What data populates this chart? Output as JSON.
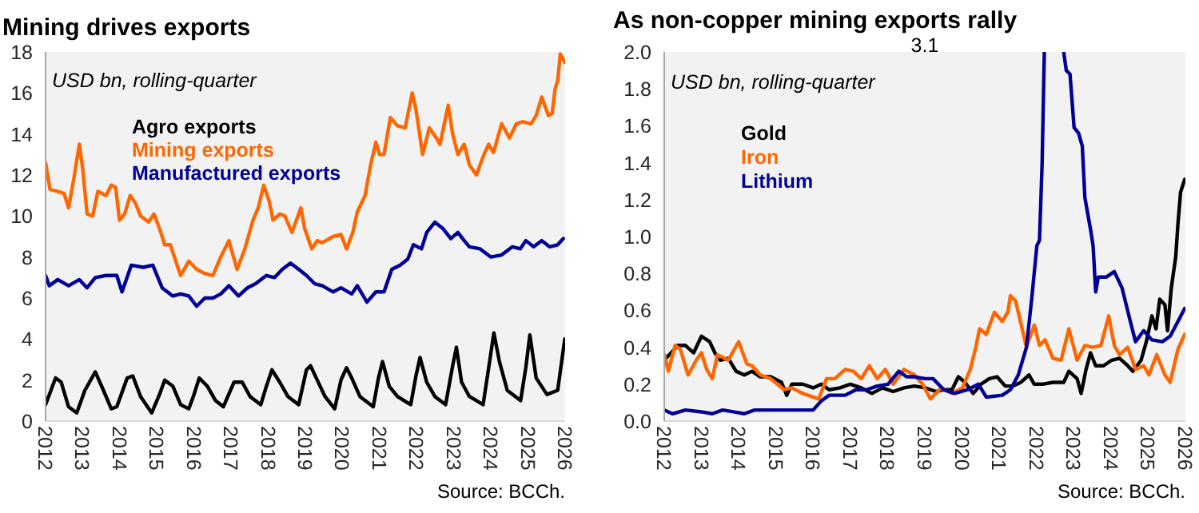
{
  "chart_data": [
    {
      "type": "line",
      "title": "Mining drives exports",
      "annotations": [
        "USD bn, rolling-quarter",
        "Source: BCCh."
      ],
      "legend": "top left",
      "xlim": [
        2012,
        2026
      ],
      "xticks": [
        2012,
        2013,
        2014,
        2015,
        2016,
        2017,
        2018,
        2019,
        2020,
        2021,
        2022,
        2023,
        2024,
        2025,
        2026
      ],
      "ylim": [
        0,
        18
      ],
      "yticks": [
        0,
        2,
        4,
        6,
        8,
        10,
        12,
        14,
        16,
        18
      ],
      "series": [
        {
          "name": "Agro exports",
          "color": "#000000",
          "x": [
            2012.0,
            2012.27,
            2012.42,
            2012.62,
            2012.84,
            2013.06,
            2013.34,
            2013.56,
            2013.77,
            2013.92,
            2014.2,
            2014.35,
            2014.56,
            2014.86,
            2015.07,
            2015.21,
            2015.43,
            2015.64,
            2015.86,
            2016.0,
            2016.14,
            2016.36,
            2016.58,
            2016.79,
            2017.08,
            2017.3,
            2017.51,
            2017.8,
            2017.95,
            2018.1,
            2018.31,
            2018.53,
            2018.82,
            2019.03,
            2019.14,
            2019.32,
            2019.53,
            2019.79,
            2019.96,
            2020.11,
            2020.25,
            2020.47,
            2020.83,
            2020.97,
            2021.08,
            2021.26,
            2021.48,
            2021.84,
            2021.98,
            2022.09,
            2022.27,
            2022.49,
            2022.78,
            2022.97,
            2023.07,
            2023.21,
            2023.42,
            2023.79,
            2023.94,
            2024.08,
            2024.23,
            2024.44,
            2024.8,
            2024.94,
            2025.05,
            2025.22,
            2025.51,
            2025.8,
            2025.99
          ],
          "values": [
            0.8,
            2.1,
            1.9,
            0.7,
            0.4,
            1.5,
            2.4,
            1.5,
            0.6,
            0.7,
            2.1,
            2.2,
            1.2,
            0.4,
            1.3,
            2.0,
            1.7,
            0.8,
            0.6,
            1.3,
            2.1,
            1.7,
            1.0,
            0.7,
            1.9,
            1.9,
            1.2,
            0.8,
            1.7,
            2.5,
            1.9,
            1.2,
            0.8,
            2.5,
            2.7,
            2.0,
            1.2,
            0.6,
            2.0,
            2.6,
            2.1,
            1.2,
            0.7,
            2.1,
            2.9,
            1.7,
            1.2,
            0.8,
            2.2,
            3.1,
            1.9,
            1.2,
            0.8,
            2.7,
            3.6,
            1.9,
            1.2,
            0.8,
            2.6,
            4.3,
            2.9,
            1.5,
            1.0,
            2.6,
            4.2,
            2.1,
            1.3,
            1.5,
            4.0
          ]
        },
        {
          "name": "Mining exports",
          "color": "#ff6600",
          "x": [
            2012.0,
            2012.12,
            2012.33,
            2012.5,
            2012.62,
            2012.76,
            2012.91,
            2013.0,
            2013.12,
            2013.27,
            2013.41,
            2013.63,
            2013.77,
            2013.89,
            2013.99,
            2014.13,
            2014.28,
            2014.43,
            2014.56,
            2014.78,
            2014.92,
            2015.07,
            2015.21,
            2015.36,
            2015.64,
            2015.86,
            2016.07,
            2016.29,
            2016.51,
            2016.72,
            2016.94,
            2017.16,
            2017.37,
            2017.59,
            2017.73,
            2017.88,
            2018.03,
            2018.13,
            2018.31,
            2018.45,
            2018.64,
            2018.88,
            2018.98,
            2019.17,
            2019.32,
            2019.46,
            2019.75,
            2019.96,
            2020.11,
            2020.28,
            2020.4,
            2020.61,
            2020.76,
            2020.9,
            2021.0,
            2021.12,
            2021.29,
            2021.48,
            2021.69,
            2021.88,
            2021.98,
            2022.16,
            2022.34,
            2022.53,
            2022.63,
            2022.85,
            2022.97,
            2023.11,
            2023.28,
            2023.42,
            2023.61,
            2023.79,
            2023.94,
            2024.07,
            2024.29,
            2024.5,
            2024.69,
            2024.86,
            2025.08,
            2025.22,
            2025.37,
            2025.55,
            2025.65,
            2025.73,
            2025.8,
            2025.87,
            2025.99
          ],
          "values": [
            12.6,
            11.3,
            11.2,
            11.1,
            10.4,
            11.8,
            13.5,
            12.3,
            10.1,
            10.0,
            11.2,
            11.0,
            11.5,
            11.4,
            9.8,
            10.1,
            11.0,
            10.6,
            10.0,
            9.7,
            10.1,
            9.4,
            8.6,
            8.6,
            7.1,
            7.8,
            7.4,
            7.2,
            7.1,
            8.0,
            8.8,
            7.4,
            8.4,
            9.8,
            10.4,
            11.5,
            10.7,
            9.8,
            10.1,
            10.0,
            9.2,
            10.4,
            9.4,
            8.4,
            8.8,
            8.7,
            9.0,
            9.1,
            8.4,
            9.2,
            10.2,
            11.0,
            12.5,
            13.6,
            13.0,
            13.0,
            14.8,
            14.4,
            14.3,
            16.0,
            15.2,
            13.0,
            14.3,
            13.8,
            13.5,
            15.4,
            14.0,
            13.0,
            13.5,
            12.5,
            12.0,
            12.9,
            13.5,
            13.1,
            14.5,
            13.8,
            14.5,
            14.6,
            14.5,
            14.9,
            15.8,
            14.9,
            15.0,
            16.2,
            16.6,
            17.9,
            17.5
          ]
        },
        {
          "name": "Manufactured exports",
          "color": "#000099",
          "x": [
            2012.0,
            2012.1,
            2012.33,
            2012.62,
            2012.91,
            2013.12,
            2013.34,
            2013.63,
            2013.92,
            2014.06,
            2014.31,
            2014.63,
            2014.89,
            2015.14,
            2015.43,
            2015.64,
            2015.86,
            2016.07,
            2016.29,
            2016.51,
            2016.72,
            2016.94,
            2017.2,
            2017.44,
            2017.66,
            2017.95,
            2018.17,
            2018.38,
            2018.6,
            2018.82,
            2019.03,
            2019.25,
            2019.46,
            2019.75,
            2019.96,
            2020.25,
            2020.4,
            2020.66,
            2020.9,
            2021.12,
            2021.33,
            2021.55,
            2021.76,
            2021.91,
            2022.13,
            2022.27,
            2022.49,
            2022.7,
            2022.92,
            2023.11,
            2023.28,
            2023.42,
            2023.71,
            2024.0,
            2024.29,
            2024.58,
            2024.79,
            2024.94,
            2025.15,
            2025.37,
            2025.58,
            2025.8,
            2025.95
          ],
          "values": [
            7.1,
            6.6,
            6.9,
            6.6,
            6.9,
            6.5,
            7.0,
            7.1,
            7.1,
            6.3,
            7.6,
            7.5,
            7.6,
            6.5,
            6.1,
            6.2,
            6.1,
            5.6,
            6.0,
            6.0,
            6.2,
            6.6,
            6.1,
            6.5,
            6.7,
            7.1,
            7.0,
            7.4,
            7.7,
            7.4,
            7.1,
            6.7,
            6.6,
            6.3,
            6.5,
            6.2,
            6.6,
            5.8,
            6.3,
            6.3,
            7.4,
            7.6,
            7.9,
            8.6,
            8.4,
            9.2,
            9.7,
            9.4,
            8.9,
            9.2,
            8.8,
            8.5,
            8.4,
            8.0,
            8.1,
            8.5,
            8.4,
            8.8,
            8.5,
            8.8,
            8.5,
            8.6,
            8.9
          ]
        }
      ]
    },
    {
      "type": "line",
      "title": "As non-copper mining exports rally",
      "annotations": [
        "USD bn, rolling-quarter",
        "Source: BCCh.",
        "3.1"
      ],
      "legend": "top left",
      "xlim": [
        2012,
        2026
      ],
      "xticks": [
        2012,
        2013,
        2014,
        2015,
        2016,
        2017,
        2018,
        2019,
        2020,
        2021,
        2022,
        2023,
        2024,
        2025,
        2026
      ],
      "ylim": [
        0,
        2
      ],
      "yticks": [
        {
          "value": 0,
          "label": "0.0"
        },
        0.2,
        0.4,
        0.6,
        0.8,
        {
          "value": 1,
          "label": "1.0"
        },
        1.2,
        1.4,
        1.6,
        1.8,
        {
          "value": 2,
          "label": "2.0"
        }
      ],
      "series": [
        {
          "name": "Gold",
          "color": "#000000",
          "x": [
            2012.0,
            2012.14,
            2012.36,
            2012.57,
            2012.79,
            2013.0,
            2013.22,
            2013.36,
            2013.5,
            2013.72,
            2013.93,
            2014.15,
            2014.36,
            2014.58,
            2014.86,
            2015.15,
            2015.29,
            2015.43,
            2015.72,
            2016.0,
            2016.22,
            2016.43,
            2016.72,
            2017.0,
            2017.29,
            2017.58,
            2017.86,
            2018.15,
            2018.44,
            2018.72,
            2019.01,
            2019.3,
            2019.51,
            2019.73,
            2019.9,
            2020.08,
            2020.3,
            2020.51,
            2020.73,
            2020.94,
            2021.16,
            2021.37,
            2021.58,
            2021.8,
            2021.94,
            2022.16,
            2022.44,
            2022.73,
            2022.87,
            2023.09,
            2023.2,
            2023.33,
            2023.45,
            2023.59,
            2023.8,
            2024.02,
            2024.23,
            2024.45,
            2024.59,
            2024.81,
            2024.95,
            2025.1,
            2025.21,
            2025.31,
            2025.45,
            2025.52,
            2025.62,
            2025.74,
            2025.8,
            2025.87,
            2025.98
          ],
          "values": [
            0.33,
            0.36,
            0.41,
            0.41,
            0.37,
            0.46,
            0.43,
            0.37,
            0.33,
            0.34,
            0.27,
            0.25,
            0.27,
            0.24,
            0.24,
            0.21,
            0.14,
            0.2,
            0.2,
            0.18,
            0.2,
            0.17,
            0.18,
            0.2,
            0.18,
            0.15,
            0.18,
            0.16,
            0.18,
            0.19,
            0.18,
            0.16,
            0.17,
            0.17,
            0.24,
            0.21,
            0.15,
            0.2,
            0.23,
            0.24,
            0.19,
            0.19,
            0.21,
            0.25,
            0.2,
            0.2,
            0.21,
            0.21,
            0.27,
            0.23,
            0.15,
            0.28,
            0.37,
            0.3,
            0.3,
            0.33,
            0.34,
            0.3,
            0.27,
            0.33,
            0.43,
            0.57,
            0.5,
            0.66,
            0.63,
            0.49,
            0.72,
            0.89,
            1.07,
            1.24,
            1.31
          ]
        },
        {
          "name": "Iron",
          "color": "#ff6600",
          "x": [
            2012.0,
            2012.11,
            2012.29,
            2012.43,
            2012.64,
            2012.86,
            2013.0,
            2013.14,
            2013.29,
            2013.43,
            2013.72,
            2014.0,
            2014.22,
            2014.36,
            2014.58,
            2014.86,
            2015.22,
            2015.43,
            2015.72,
            2016.15,
            2016.36,
            2016.58,
            2016.86,
            2017.08,
            2017.29,
            2017.51,
            2017.72,
            2017.94,
            2018.15,
            2018.44,
            2018.72,
            2018.94,
            2019.15,
            2019.44,
            2019.73,
            2020.01,
            2020.22,
            2020.37,
            2020.47,
            2020.65,
            2020.87,
            2021.08,
            2021.23,
            2021.3,
            2021.44,
            2021.58,
            2021.73,
            2021.94,
            2022.08,
            2022.23,
            2022.44,
            2022.66,
            2022.87,
            2023.09,
            2023.3,
            2023.51,
            2023.73,
            2023.94,
            2024.09,
            2024.23,
            2024.45,
            2024.66,
            2024.88,
            2025.02,
            2025.23,
            2025.45,
            2025.59,
            2025.8,
            2025.98
          ],
          "values": [
            0.36,
            0.27,
            0.41,
            0.39,
            0.25,
            0.33,
            0.37,
            0.28,
            0.23,
            0.36,
            0.33,
            0.43,
            0.31,
            0.3,
            0.25,
            0.23,
            0.17,
            0.18,
            0.15,
            0.12,
            0.23,
            0.23,
            0.28,
            0.27,
            0.23,
            0.3,
            0.23,
            0.28,
            0.2,
            0.28,
            0.25,
            0.2,
            0.12,
            0.18,
            0.15,
            0.18,
            0.28,
            0.4,
            0.5,
            0.47,
            0.59,
            0.54,
            0.59,
            0.68,
            0.65,
            0.53,
            0.4,
            0.52,
            0.41,
            0.44,
            0.34,
            0.33,
            0.5,
            0.33,
            0.41,
            0.4,
            0.41,
            0.57,
            0.41,
            0.36,
            0.4,
            0.28,
            0.3,
            0.25,
            0.36,
            0.25,
            0.21,
            0.39,
            0.47
          ]
        },
        {
          "name": "Lithium",
          "color": "#000099",
          "x": [
            2012.0,
            2012.22,
            2012.57,
            2013.0,
            2013.29,
            2013.57,
            2013.86,
            2014.15,
            2014.43,
            2014.86,
            2015.22,
            2015.57,
            2016.0,
            2016.22,
            2016.43,
            2016.86,
            2017.15,
            2017.44,
            2017.72,
            2018.01,
            2018.3,
            2018.51,
            2018.72,
            2019.01,
            2019.22,
            2019.51,
            2019.8,
            2020.15,
            2020.44,
            2020.65,
            2021.08,
            2021.3,
            2021.51,
            2021.73,
            2021.87,
            2022.01,
            2022.08,
            2022.15,
            2022.21,
            2022.5,
            2022.73,
            2022.8,
            2022.9,
            2023.01,
            2023.13,
            2023.23,
            2023.3,
            2023.45,
            2023.52,
            2023.59,
            2023.66,
            2023.87,
            2024.09,
            2024.3,
            2024.52,
            2024.66,
            2024.88,
            2025.1,
            2025.38,
            2025.59,
            2025.8,
            2025.98
          ],
          "values": [
            0.06,
            0.04,
            0.06,
            0.05,
            0.04,
            0.06,
            0.05,
            0.04,
            0.06,
            0.06,
            0.06,
            0.06,
            0.06,
            0.11,
            0.14,
            0.14,
            0.17,
            0.17,
            0.19,
            0.2,
            0.27,
            0.24,
            0.24,
            0.23,
            0.23,
            0.17,
            0.15,
            0.17,
            0.2,
            0.13,
            0.14,
            0.17,
            0.25,
            0.4,
            0.66,
            0.95,
            0.98,
            1.39,
            2.0,
            null,
            2.0,
            1.9,
            1.88,
            1.59,
            1.56,
            1.49,
            1.21,
            1.04,
            0.95,
            0.7,
            0.78,
            0.78,
            0.81,
            0.72,
            0.54,
            0.43,
            0.49,
            0.44,
            0.43,
            0.46,
            0.54,
            0.61
          ]
        }
      ]
    }
  ]
}
